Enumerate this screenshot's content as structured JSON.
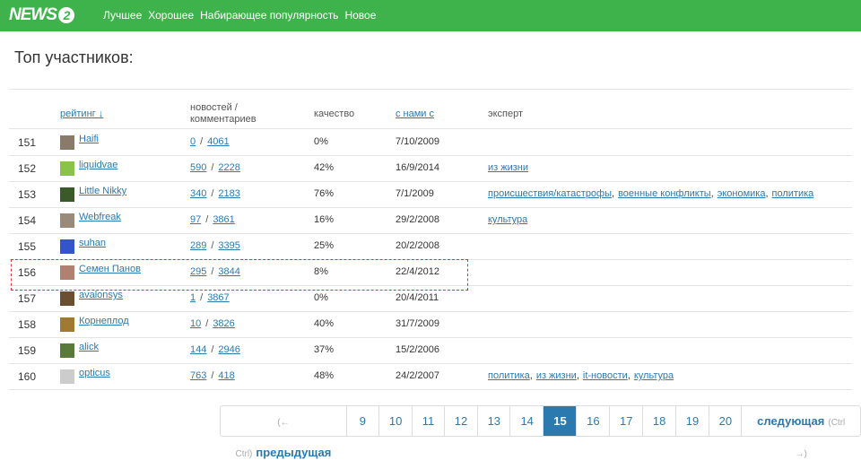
{
  "header": {
    "logo": {
      "text": "NEWS",
      "badge": "2"
    },
    "nav": [
      "Лучшее",
      "Хорошее",
      "Набирающее популярность",
      "Новое"
    ]
  },
  "page_title": "Топ участников:",
  "table": {
    "columns": [
      "рейтинг ↓",
      "новостей / комментариев",
      "качество",
      "с нами с",
      "эксперт"
    ],
    "link_separator": "/",
    "expert_separator": ",",
    "rows": [
      {
        "rank": "151",
        "user": "Haifi",
        "news": "0",
        "comments": "4061",
        "quality": "0%",
        "joined": "7/10/2009",
        "expert": []
      },
      {
        "rank": "152",
        "user": "liquidvae",
        "news": "590",
        "comments": "2228",
        "quality": "42%",
        "joined": "16/9/2014",
        "expert": [
          "из жизни"
        ]
      },
      {
        "rank": "153",
        "user": "Little Nikky",
        "news": "340",
        "comments": "2183",
        "quality": "76%",
        "joined": "7/1/2009",
        "expert": [
          "происшествия/катастрофы",
          "военные конфликты",
          "экономика",
          "политика"
        ]
      },
      {
        "rank": "154",
        "user": "Webfreak",
        "news": "97",
        "comments": "3861",
        "quality": "16%",
        "joined": "29/2/2008",
        "expert": [
          "культура"
        ]
      },
      {
        "rank": "155",
        "user": "suhan",
        "news": "289",
        "comments": "3395",
        "quality": "25%",
        "joined": "20/2/2008",
        "expert": []
      },
      {
        "rank": "156",
        "user": "Семен Панов",
        "news": "295",
        "comments": "3844",
        "quality": "8%",
        "joined": "22/4/2012",
        "expert": []
      },
      {
        "rank": "157",
        "user": "avalonsys",
        "news": "1",
        "comments": "3867",
        "quality": "0%",
        "joined": "20/4/2011",
        "expert": []
      },
      {
        "rank": "158",
        "user": "Корнеплод",
        "news": "10",
        "comments": "3826",
        "quality": "40%",
        "joined": "31/7/2009",
        "expert": []
      },
      {
        "rank": "159",
        "user": "alick",
        "news": "144",
        "comments": "2946",
        "quality": "37%",
        "joined": "15/2/2006",
        "expert": []
      },
      {
        "rank": "160",
        "user": "opticus",
        "news": "763",
        "comments": "418",
        "quality": "48%",
        "joined": "24/2/2007",
        "expert": [
          "политика",
          "из жизни",
          "it-новости",
          "культура"
        ]
      }
    ]
  },
  "pagination": {
    "prev_hint": "(← Ctrl)",
    "prev": "предыдущая",
    "pages": [
      "9",
      "10",
      "11",
      "12",
      "13",
      "14",
      "15",
      "16",
      "17",
      "18",
      "19",
      "20"
    ],
    "current": "15",
    "next": "следующая",
    "next_hint": "(Ctrl →)"
  }
}
